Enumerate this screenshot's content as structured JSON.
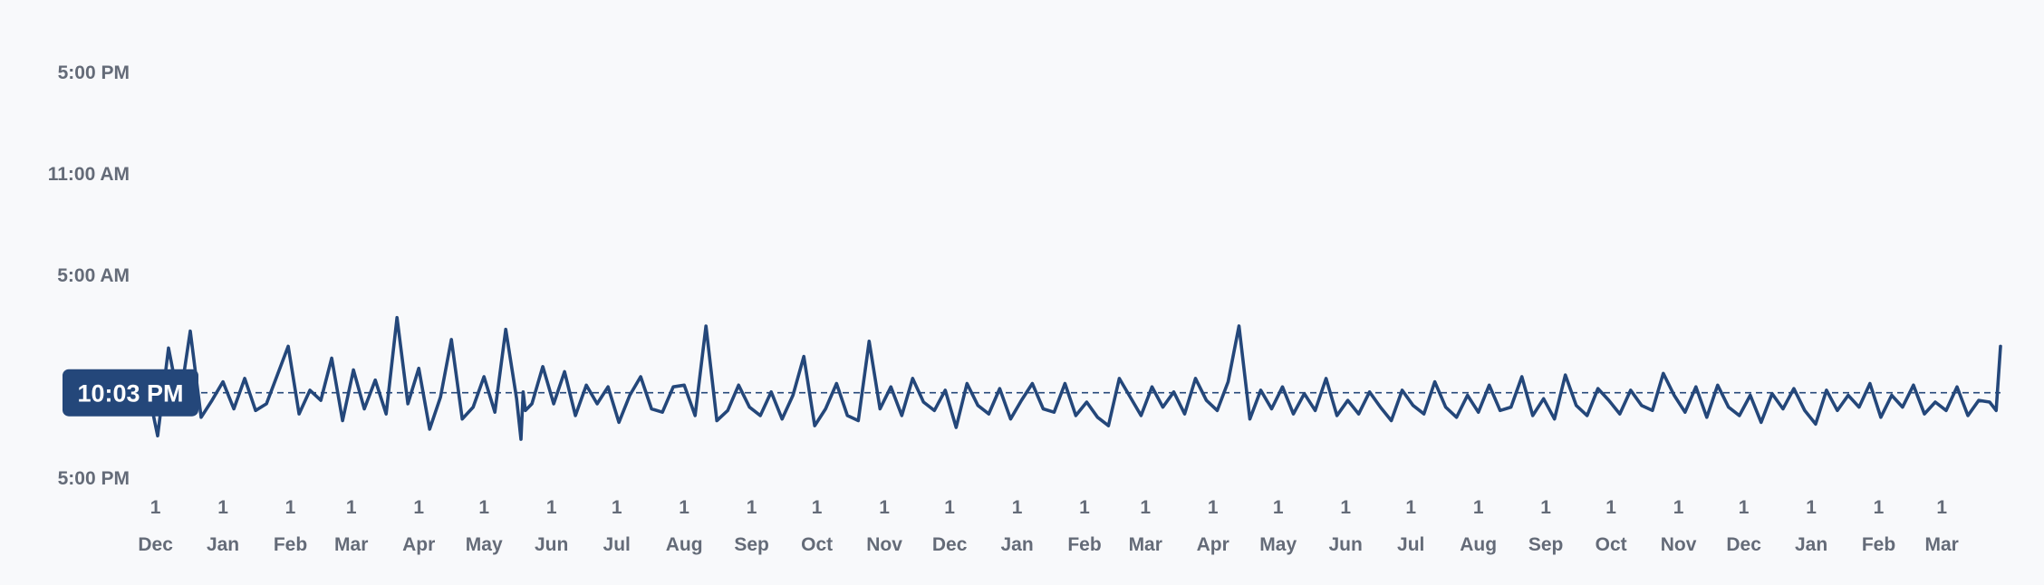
{
  "colors": {
    "background": "#f8f9fb",
    "series": "#24477a",
    "tick_text": "#646b78",
    "badge_text": "#ffffff"
  },
  "chart_data": {
    "type": "line",
    "title": "",
    "xlabel": "",
    "ylabel": "",
    "grid": false,
    "legend": "none",
    "y_ticks": [
      "5:00 PM",
      "11:00 AM",
      "5:00 AM",
      "5:00 PM"
    ],
    "y_tick_hours": [
      17,
      11,
      5,
      -7
    ],
    "ylim_hours": [
      -7,
      17
    ],
    "x_ticks": [
      {
        "day": "1",
        "month": "Dec",
        "date": "2021-12-01"
      },
      {
        "day": "1",
        "month": "Jan",
        "date": "2022-01-01"
      },
      {
        "day": "1",
        "month": "Feb",
        "date": "2022-02-01"
      },
      {
        "day": "1",
        "month": "Mar",
        "date": "2022-03-01"
      },
      {
        "day": "1",
        "month": "Apr",
        "date": "2022-04-01"
      },
      {
        "day": "1",
        "month": "May",
        "date": "2022-05-01"
      },
      {
        "day": "1",
        "month": "Jun",
        "date": "2022-06-01"
      },
      {
        "day": "1",
        "month": "Jul",
        "date": "2022-07-01"
      },
      {
        "day": "1",
        "month": "Aug",
        "date": "2022-08-01"
      },
      {
        "day": "1",
        "month": "Sep",
        "date": "2022-09-01"
      },
      {
        "day": "1",
        "month": "Oct",
        "date": "2022-10-01"
      },
      {
        "day": "1",
        "month": "Nov",
        "date": "2022-11-01"
      },
      {
        "day": "1",
        "month": "Dec",
        "date": "2022-12-01"
      },
      {
        "day": "1",
        "month": "Jan",
        "date": "2023-01-01"
      },
      {
        "day": "1",
        "month": "Feb",
        "date": "2023-02-01"
      },
      {
        "day": "1",
        "month": "Mar",
        "date": "2023-03-01"
      },
      {
        "day": "1",
        "month": "Apr",
        "date": "2023-04-01"
      },
      {
        "day": "1",
        "month": "May",
        "date": "2023-05-01"
      },
      {
        "day": "1",
        "month": "Jun",
        "date": "2023-06-01"
      },
      {
        "day": "1",
        "month": "Jul",
        "date": "2023-07-01"
      },
      {
        "day": "1",
        "month": "Aug",
        "date": "2023-08-01"
      },
      {
        "day": "1",
        "month": "Sep",
        "date": "2023-09-01"
      },
      {
        "day": "1",
        "month": "Oct",
        "date": "2023-10-01"
      },
      {
        "day": "1",
        "month": "Nov",
        "date": "2023-11-01"
      },
      {
        "day": "1",
        "month": "Dec",
        "date": "2023-12-01"
      },
      {
        "day": "1",
        "month": "Jan",
        "date": "2024-01-01"
      },
      {
        "day": "1",
        "month": "Feb",
        "date": "2024-02-01"
      },
      {
        "day": "1",
        "month": "Mar",
        "date": "2024-03-01"
      }
    ],
    "average": {
      "label": "10:03 PM",
      "hours": -1.95
    },
    "series": [
      {
        "x": [
          "2021-11-27",
          "2021-12-02",
          "2021-12-07",
          "2021-12-12",
          "2021-12-17",
          "2021-12-22",
          "2021-12-27",
          "2022-01-01",
          "2022-01-06",
          "2022-01-11",
          "2022-01-16",
          "2022-01-21",
          "2022-01-26",
          "2022-01-31",
          "2022-02-05",
          "2022-02-10",
          "2022-02-15",
          "2022-02-20",
          "2022-02-25",
          "2022-03-02",
          "2022-03-07",
          "2022-03-12",
          "2022-03-17",
          "2022-03-22",
          "2022-03-27",
          "2022-04-01",
          "2022-04-06",
          "2022-04-11",
          "2022-04-16",
          "2022-04-21",
          "2022-04-26",
          "2022-05-01",
          "2022-05-06",
          "2022-05-11",
          "2022-05-16",
          "2022-05-18",
          "2022-05-19",
          "2022-05-20",
          "2022-05-23",
          "2022-05-28",
          "2022-06-02",
          "2022-06-07",
          "2022-06-12",
          "2022-06-17",
          "2022-06-22",
          "2022-06-27",
          "2022-07-02",
          "2022-07-07",
          "2022-07-12",
          "2022-07-17",
          "2022-07-22",
          "2022-07-27",
          "2022-08-01",
          "2022-08-06",
          "2022-08-11",
          "2022-08-16",
          "2022-08-21",
          "2022-08-26",
          "2022-08-31",
          "2022-09-05",
          "2022-09-10",
          "2022-09-15",
          "2022-09-20",
          "2022-09-25",
          "2022-09-30",
          "2022-10-05",
          "2022-10-10",
          "2022-10-15",
          "2022-10-20",
          "2022-10-25",
          "2022-10-30",
          "2022-11-04",
          "2022-11-09",
          "2022-11-14",
          "2022-11-19",
          "2022-11-24",
          "2022-11-29",
          "2022-12-04",
          "2022-12-09",
          "2022-12-14",
          "2022-12-19",
          "2022-12-24",
          "2022-12-29",
          "2023-01-03",
          "2023-01-08",
          "2023-01-13",
          "2023-01-18",
          "2023-01-23",
          "2023-01-28",
          "2023-02-02",
          "2023-02-07",
          "2023-02-12",
          "2023-02-17",
          "2023-02-22",
          "2023-02-27",
          "2023-03-04",
          "2023-03-09",
          "2023-03-14",
          "2023-03-19",
          "2023-03-24",
          "2023-03-29",
          "2023-04-03",
          "2023-04-08",
          "2023-04-13",
          "2023-04-18",
          "2023-04-23",
          "2023-04-28",
          "2023-05-03",
          "2023-05-08",
          "2023-05-13",
          "2023-05-18",
          "2023-05-23",
          "2023-05-28",
          "2023-06-02",
          "2023-06-07",
          "2023-06-12",
          "2023-06-17",
          "2023-06-22",
          "2023-06-27",
          "2023-07-02",
          "2023-07-07",
          "2023-07-12",
          "2023-07-17",
          "2023-07-22",
          "2023-07-27",
          "2023-08-01",
          "2023-08-06",
          "2023-08-11",
          "2023-08-16",
          "2023-08-21",
          "2023-08-26",
          "2023-08-31",
          "2023-09-05",
          "2023-09-10",
          "2023-09-15",
          "2023-09-20",
          "2023-09-25",
          "2023-09-30",
          "2023-10-05",
          "2023-10-10",
          "2023-10-15",
          "2023-10-20",
          "2023-10-25",
          "2023-10-30",
          "2023-11-04",
          "2023-11-09",
          "2023-11-14",
          "2023-11-19",
          "2023-11-24",
          "2023-11-29",
          "2023-12-04",
          "2023-12-09",
          "2023-12-14",
          "2023-12-19",
          "2023-12-24",
          "2023-12-29",
          "2024-01-03",
          "2024-01-08",
          "2024-01-13",
          "2024-01-18",
          "2024-01-23",
          "2024-01-28",
          "2024-02-02",
          "2024-02-07",
          "2024-02-12",
          "2024-02-17",
          "2024-02-22",
          "2024-02-27",
          "2024-03-03",
          "2024-03-08",
          "2024-03-13",
          "2024-03-18",
          "2024-03-23",
          "2024-03-26",
          "2024-03-28"
        ],
        "y": [
          -1.4,
          -4.5,
          0.7,
          -2.6,
          1.7,
          -3.4,
          -2.4,
          -1.3,
          -2.9,
          -1.1,
          -3.0,
          -2.6,
          -0.9,
          0.8,
          -3.2,
          -1.8,
          -2.4,
          0.1,
          -3.6,
          -0.6,
          -2.9,
          -1.2,
          -3.2,
          2.5,
          -2.6,
          -0.5,
          -4.1,
          -2.2,
          1.2,
          -3.5,
          -2.8,
          -1.0,
          -3.1,
          1.8,
          -2.3,
          -4.7,
          -1.9,
          -3.0,
          -2.6,
          -0.4,
          -2.6,
          -0.7,
          -3.3,
          -1.5,
          -2.6,
          -1.6,
          -3.7,
          -2.1,
          -1.0,
          -2.9,
          -3.1,
          -1.6,
          -1.5,
          -3.3,
          2.0,
          -3.6,
          -3.0,
          -1.5,
          -2.8,
          -3.3,
          -1.9,
          -3.5,
          -2.1,
          0.2,
          -3.9,
          -2.9,
          -1.4,
          -3.3,
          -3.6,
          1.1,
          -2.9,
          -1.6,
          -3.3,
          -1.1,
          -2.5,
          -3.0,
          -1.8,
          -4.0,
          -1.4,
          -2.7,
          -3.2,
          -1.7,
          -3.5,
          -2.4,
          -1.4,
          -2.9,
          -3.1,
          -1.4,
          -3.3,
          -2.5,
          -3.4,
          -3.9,
          -1.1,
          -2.2,
          -3.3,
          -1.6,
          -2.8,
          -1.9,
          -3.2,
          -1.1,
          -2.4,
          -3.0,
          -1.3,
          2.0,
          -3.5,
          -1.8,
          -2.9,
          -1.6,
          -3.2,
          -2.0,
          -3.0,
          -1.1,
          -3.3,
          -2.4,
          -3.2,
          -1.9,
          -2.8,
          -3.6,
          -1.8,
          -2.7,
          -3.2,
          -1.3,
          -2.8,
          -3.4,
          -2.1,
          -3.1,
          -1.5,
          -3.0,
          -2.8,
          -1.0,
          -3.3,
          -2.3,
          -3.5,
          -0.9,
          -2.7,
          -3.3,
          -1.7,
          -2.4,
          -3.2,
          -1.8,
          -2.7,
          -3.0,
          -0.8,
          -2.1,
          -3.1,
          -1.6,
          -3.4,
          -1.5,
          -2.8,
          -3.3,
          -2.1,
          -3.7,
          -2.0,
          -2.9,
          -1.7,
          -3.0,
          -3.8,
          -1.8,
          -3.0,
          -2.1,
          -2.8,
          -1.4,
          -3.4,
          -2.1,
          -2.8,
          -1.5,
          -3.2,
          -2.5,
          -3.0,
          -1.6,
          -3.3,
          -2.4,
          -2.5,
          -3.0,
          0.8
        ]
      }
    ]
  }
}
